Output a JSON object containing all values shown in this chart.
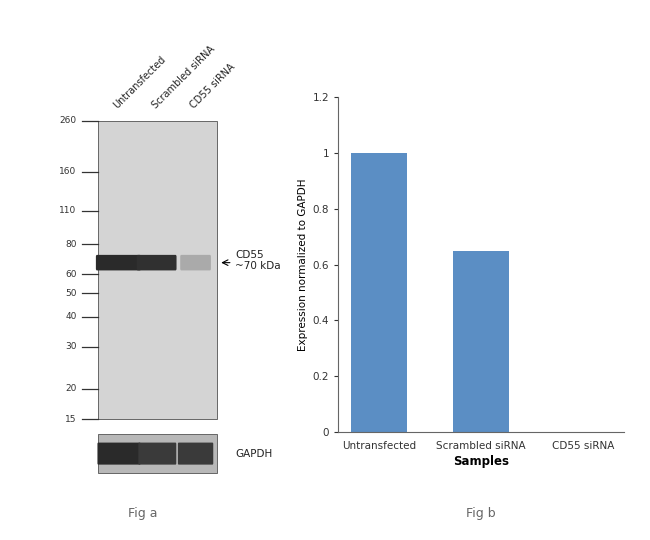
{
  "fig_a": {
    "lane_labels": [
      "Untransfected",
      "Scrambled siRNA",
      "CD55 siRNA"
    ],
    "mw_markers": [
      260,
      160,
      110,
      80,
      60,
      50,
      40,
      30,
      20,
      15
    ],
    "cd55_label": "CD55\n~70 kDa",
    "gapdh_label": "GAPDH",
    "gel_bg_color": "#d4d4d4",
    "gapdh_bg_color": "#b8b8b8",
    "title": "Fig a"
  },
  "fig_b": {
    "categories": [
      "Untransfected",
      "Scrambled siRNA",
      "CD55 siRNA"
    ],
    "values": [
      1.0,
      0.65,
      0.0
    ],
    "bar_color": "#5b8ec4",
    "xlabel": "Samples",
    "ylabel": "Expression normalized to GAPDH",
    "ylim": [
      0,
      1.2
    ],
    "yticks": [
      0,
      0.2,
      0.4,
      0.6,
      0.8,
      1.0,
      1.2
    ],
    "title": "Fig b"
  },
  "background_color": "#ffffff",
  "fig_label_fontsize": 9,
  "fig_label_color": "#666666"
}
